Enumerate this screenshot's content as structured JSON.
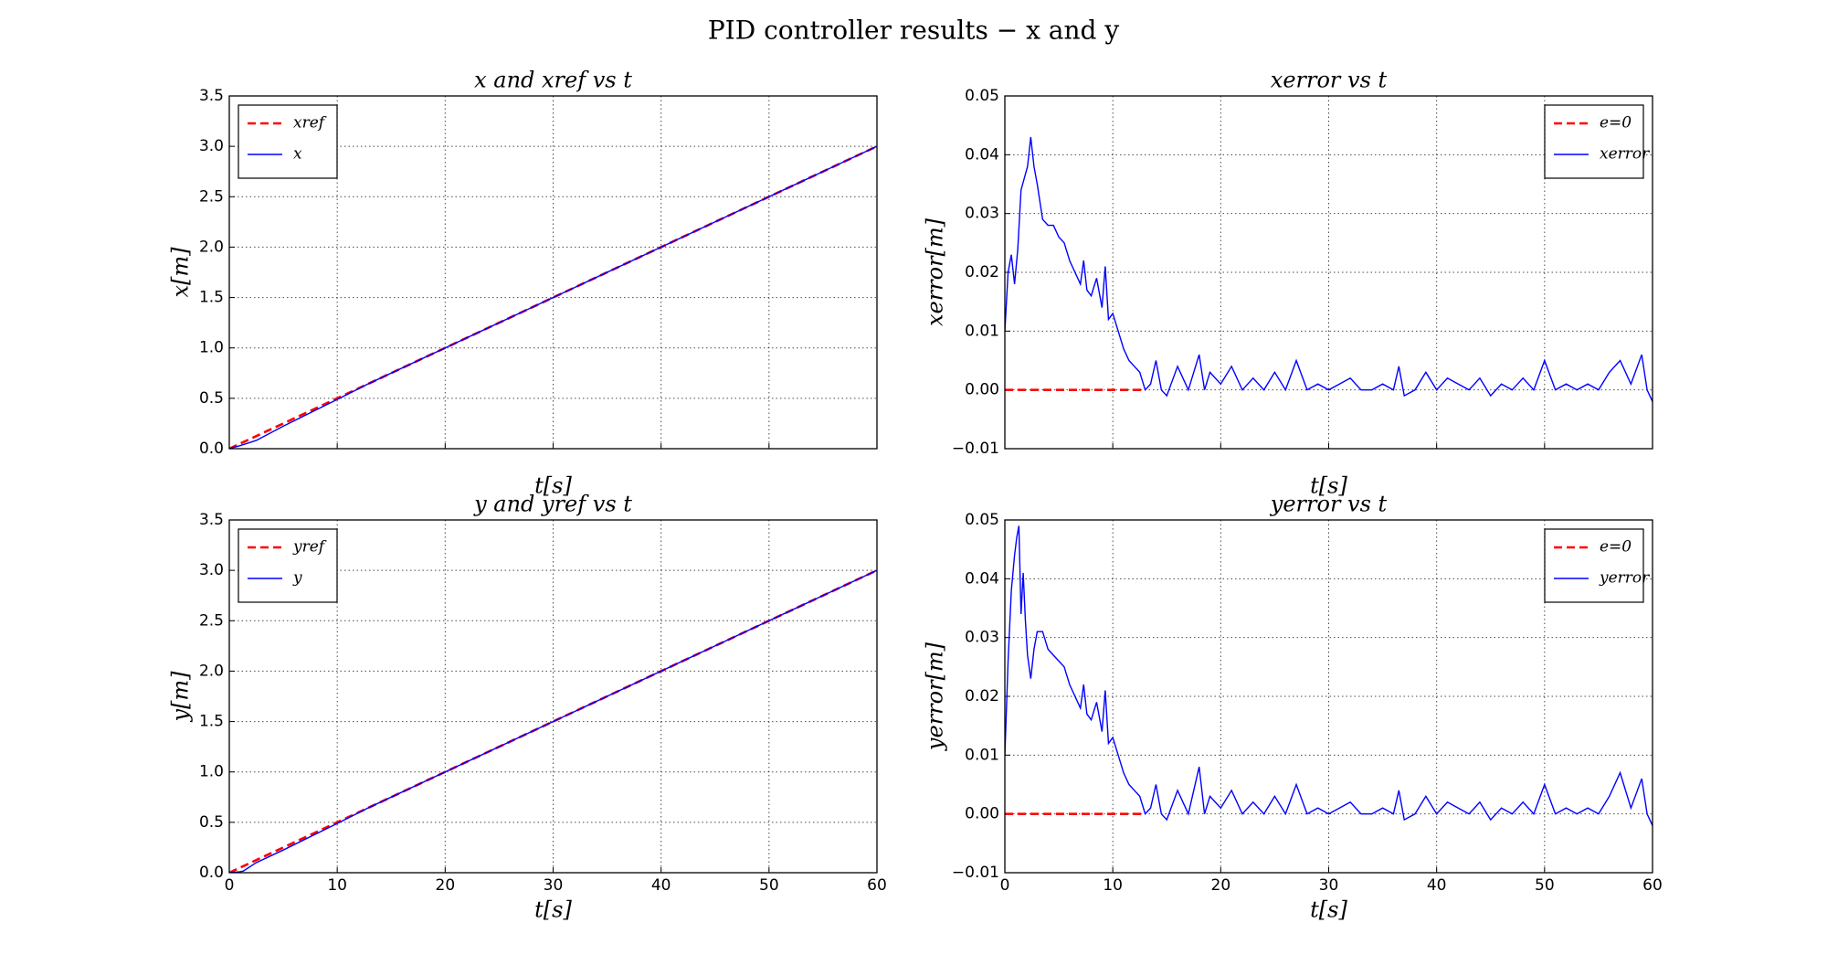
{
  "title": "PID controller results − x and y",
  "chart_data": [
    {
      "type": "line",
      "title": "x and xref vs t",
      "xlabel": "t[s]",
      "ylabel": "x[m]",
      "xlim": [
        0,
        60
      ],
      "ylim": [
        0,
        3.5
      ],
      "xticks": [
        0,
        10,
        20,
        30,
        40,
        50,
        60
      ],
      "show_xtick_labels": false,
      "yticks": [
        {
          "value": 0,
          "label": "0.0"
        },
        {
          "value": 0.5,
          "label": "0.5"
        },
        {
          "value": 1,
          "label": "1.0"
        },
        {
          "value": 1.5,
          "label": "1.5"
        },
        {
          "value": 2,
          "label": "2.0"
        },
        {
          "value": 2.5,
          "label": "2.5"
        },
        {
          "value": 3,
          "label": "3.0"
        },
        {
          "value": 3.5,
          "label": "3.5"
        }
      ],
      "grid": true,
      "legend_loc": "upper left",
      "series": [
        {
          "name": "xref",
          "color": "#ff0000",
          "dashed": true,
          "x": [
            0,
            60
          ],
          "values": [
            0,
            3
          ]
        },
        {
          "name": "x",
          "color": "#0000ff",
          "dashed": false,
          "x": [
            0,
            1,
            2.5,
            5,
            10,
            13,
            60
          ],
          "values": [
            0,
            0.03,
            0.082,
            0.223,
            0.488,
            0.65,
            3
          ]
        }
      ]
    },
    {
      "type": "line",
      "title": "xerror vs t",
      "xlabel": "t[s]",
      "ylabel": "xerror[m]",
      "xlim": [
        0,
        60
      ],
      "ylim": [
        -0.01,
        0.05
      ],
      "xticks": [
        0,
        10,
        20,
        30,
        40,
        50,
        60
      ],
      "show_xtick_labels": false,
      "yticks": [
        {
          "value": -0.01,
          "label": "−0.01"
        },
        {
          "value": 0,
          "label": "0.00"
        },
        {
          "value": 0.01,
          "label": "0.01"
        },
        {
          "value": 0.02,
          "label": "0.02"
        },
        {
          "value": 0.03,
          "label": "0.03"
        },
        {
          "value": 0.04,
          "label": "0.04"
        },
        {
          "value": 0.05,
          "label": "0.05"
        }
      ],
      "grid": true,
      "legend_loc": "upper right",
      "series": [
        {
          "name": "e=0",
          "color": "#ff0000",
          "dashed": true,
          "x": [
            0,
            13
          ],
          "values": [
            0,
            0
          ]
        },
        {
          "name": "xerror",
          "color": "#0000ff",
          "dashed": false,
          "x": [
            0,
            0.3,
            0.6,
            0.9,
            1.2,
            1.5,
            1.8,
            2.1,
            2.4,
            2.7,
            3,
            3.5,
            4,
            4.5,
            5,
            5.5,
            6,
            6.5,
            7,
            7.3,
            7.6,
            8,
            8.5,
            9,
            9.3,
            9.6,
            10,
            10.5,
            11,
            11.5,
            12,
            12.5,
            13,
            13.5,
            14,
            14.5,
            15,
            16,
            17,
            18,
            18.5,
            19,
            20,
            21,
            22,
            23,
            24,
            25,
            26,
            27,
            28,
            29,
            30,
            31,
            32,
            33,
            34,
            35,
            36,
            36.5,
            37,
            38,
            39,
            40,
            41,
            42,
            43,
            44,
            45,
            46,
            47,
            48,
            49,
            50,
            51,
            52,
            53,
            54,
            55,
            56,
            57,
            58,
            59,
            59.5,
            60
          ],
          "values": [
            0.01,
            0.02,
            0.023,
            0.018,
            0.024,
            0.034,
            0.036,
            0.038,
            0.043,
            0.038,
            0.035,
            0.029,
            0.028,
            0.028,
            0.026,
            0.025,
            0.022,
            0.02,
            0.018,
            0.022,
            0.017,
            0.016,
            0.019,
            0.014,
            0.021,
            0.012,
            0.013,
            0.01,
            0.007,
            0.005,
            0.004,
            0.003,
            0,
            0.001,
            0.005,
            0,
            -0.001,
            0.004,
            0,
            0.006,
            0,
            0.003,
            0.001,
            0.004,
            0,
            0.002,
            0,
            0.003,
            0,
            0.005,
            0,
            0.001,
            0,
            0.001,
            0.002,
            0,
            0,
            0.001,
            0,
            0.004,
            -0.001,
            0,
            0.003,
            0,
            0.002,
            0.001,
            0,
            0.002,
            -0.001,
            0.001,
            0,
            0.002,
            0,
            0.005,
            0,
            0.001,
            0,
            0.001,
            0,
            0.003,
            0.005,
            0.001,
            0.006,
            0,
            -0.002
          ]
        }
      ]
    },
    {
      "type": "line",
      "title": "y and yref vs t",
      "xlabel": "t[s]",
      "ylabel": "y[m]",
      "xlim": [
        0,
        60
      ],
      "ylim": [
        0,
        3.5
      ],
      "xticks": [
        0,
        10,
        20,
        30,
        40,
        50,
        60
      ],
      "show_xtick_labels": true,
      "yticks": [
        {
          "value": 0,
          "label": "0.0"
        },
        {
          "value": 0.5,
          "label": "0.5"
        },
        {
          "value": 1,
          "label": "1.0"
        },
        {
          "value": 1.5,
          "label": "1.5"
        },
        {
          "value": 2,
          "label": "2.0"
        },
        {
          "value": 2.5,
          "label": "2.5"
        },
        {
          "value": 3,
          "label": "3.0"
        },
        {
          "value": 3.5,
          "label": "3.5"
        }
      ],
      "grid": true,
      "legend_loc": "upper left",
      "series": [
        {
          "name": "yref",
          "color": "#ff0000",
          "dashed": true,
          "x": [
            0,
            60
          ],
          "values": [
            0,
            3
          ]
        },
        {
          "name": "y",
          "color": "#0000ff",
          "dashed": false,
          "x": [
            0,
            1,
            1.3,
            2.5,
            5,
            10,
            13,
            60
          ],
          "values": [
            0,
            0.01,
            0.016,
            0.1,
            0.225,
            0.488,
            0.65,
            3
          ]
        }
      ]
    },
    {
      "type": "line",
      "title": "yerror vs t",
      "xlabel": "t[s]",
      "ylabel": "yerror[m]",
      "xlim": [
        0,
        60
      ],
      "ylim": [
        -0.01,
        0.05
      ],
      "xticks": [
        0,
        10,
        20,
        30,
        40,
        50,
        60
      ],
      "show_xtick_labels": true,
      "yticks": [
        {
          "value": -0.01,
          "label": "−0.01"
        },
        {
          "value": 0,
          "label": "0.00"
        },
        {
          "value": 0.01,
          "label": "0.01"
        },
        {
          "value": 0.02,
          "label": "0.02"
        },
        {
          "value": 0.03,
          "label": "0.03"
        },
        {
          "value": 0.04,
          "label": "0.04"
        },
        {
          "value": 0.05,
          "label": "0.05"
        }
      ],
      "grid": true,
      "legend_loc": "upper right",
      "series": [
        {
          "name": "e=0",
          "color": "#ff0000",
          "dashed": true,
          "x": [
            0,
            13
          ],
          "values": [
            0,
            0
          ]
        },
        {
          "name": "yerror",
          "color": "#0000ff",
          "dashed": false,
          "x": [
            0,
            0.3,
            0.6,
            0.9,
            1.1,
            1.3,
            1.5,
            1.7,
            1.9,
            2.1,
            2.4,
            2.7,
            3,
            3.5,
            4,
            4.5,
            5,
            5.5,
            6,
            6.5,
            7,
            7.3,
            7.6,
            8,
            8.5,
            9,
            9.3,
            9.6,
            10,
            10.5,
            11,
            11.5,
            12,
            12.5,
            13,
            13.5,
            14,
            14.5,
            15,
            16,
            17,
            18,
            18.5,
            19,
            20,
            21,
            22,
            23,
            24,
            25,
            26,
            27,
            28,
            29,
            30,
            31,
            32,
            33,
            34,
            35,
            36,
            36.5,
            37,
            38,
            39,
            40,
            41,
            42,
            43,
            44,
            45,
            46,
            47,
            48,
            49,
            50,
            51,
            52,
            53,
            54,
            55,
            56,
            57,
            58,
            59,
            59.5,
            60
          ],
          "values": [
            0.01,
            0.026,
            0.038,
            0.044,
            0.047,
            0.049,
            0.034,
            0.041,
            0.033,
            0.027,
            0.023,
            0.028,
            0.031,
            0.031,
            0.028,
            0.027,
            0.026,
            0.025,
            0.022,
            0.02,
            0.018,
            0.022,
            0.017,
            0.016,
            0.019,
            0.014,
            0.021,
            0.012,
            0.013,
            0.01,
            0.007,
            0.005,
            0.004,
            0.003,
            0,
            0.001,
            0.005,
            0,
            -0.001,
            0.004,
            0,
            0.008,
            0,
            0.003,
            0.001,
            0.004,
            0,
            0.002,
            0,
            0.003,
            0,
            0.005,
            0,
            0.001,
            0,
            0.001,
            0.002,
            0,
            0,
            0.001,
            0,
            0.004,
            -0.001,
            0,
            0.003,
            0,
            0.002,
            0.001,
            0,
            0.002,
            -0.001,
            0.001,
            0,
            0.002,
            0,
            0.005,
            0,
            0.001,
            0,
            0.001,
            0,
            0.003,
            0.007,
            0.001,
            0.006,
            0,
            -0.002
          ]
        }
      ]
    }
  ]
}
